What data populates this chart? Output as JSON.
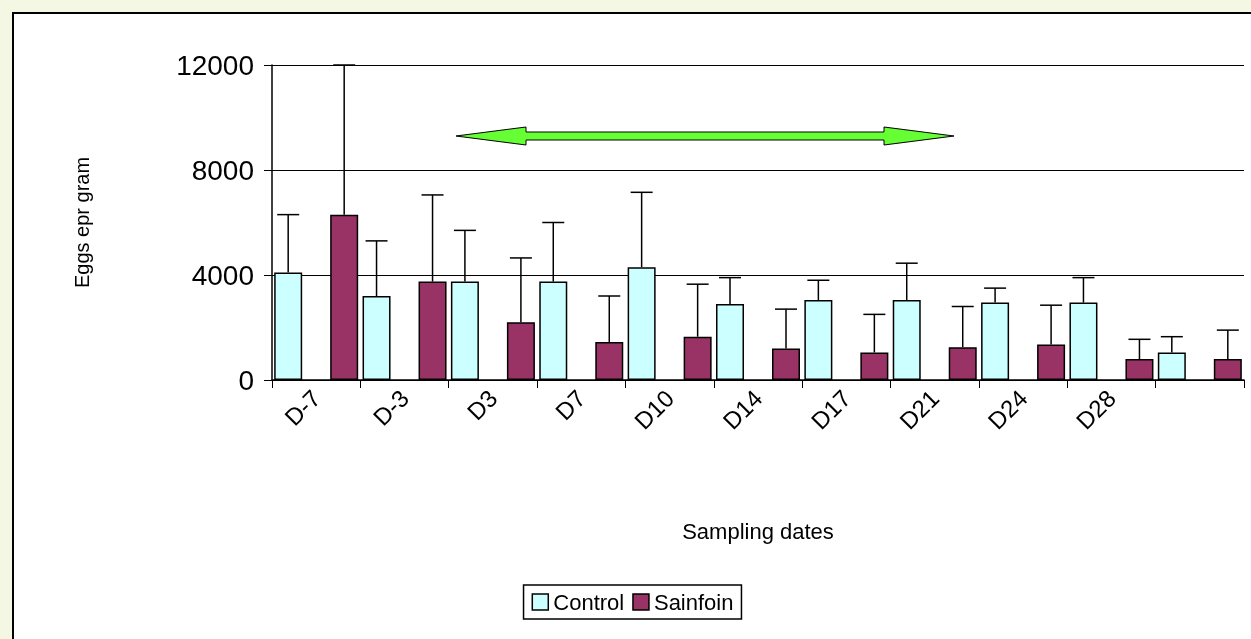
{
  "chart_data": {
    "type": "bar",
    "xlabel": "Sampling dates",
    "ylabel": "Eggs epr gram",
    "categories": [
      "D-7",
      "D-3",
      "D3",
      "D7",
      "D10",
      "D14",
      "D17",
      "D21",
      "D24",
      "D28",
      null
    ],
    "series": [
      {
        "name": "Control",
        "color": "#ccffff",
        "values": [
          4100,
          3200,
          3750,
          3750,
          4300,
          2900,
          3050,
          3050,
          2950,
          2950,
          1050
        ],
        "errors": [
          [
            4100,
            6300
          ],
          [
            3200,
            5300
          ],
          [
            3750,
            5700
          ],
          [
            3750,
            6000
          ],
          [
            4300,
            7150
          ],
          [
            2900,
            3900
          ],
          [
            3050,
            3800
          ],
          [
            3050,
            4450
          ],
          [
            2950,
            3500
          ],
          [
            2950,
            3900
          ],
          [
            1050,
            1650
          ]
        ]
      },
      {
        "name": "Sainfoin",
        "color": "#993366",
        "values": [
          6300,
          3750,
          2200,
          1450,
          1650,
          1200,
          1050,
          1250,
          1350,
          800,
          800
        ],
        "errors": [
          [
            6300,
            12000
          ],
          [
            3750,
            7050
          ],
          [
            2200,
            4650
          ],
          [
            1450,
            3200
          ],
          [
            1650,
            3650
          ],
          [
            1200,
            2700
          ],
          [
            1050,
            2500
          ],
          [
            1250,
            2800
          ],
          [
            1350,
            2850
          ],
          [
            800,
            1550
          ],
          [
            800,
            1900
          ]
        ]
      }
    ],
    "ylim": [
      0,
      12000
    ],
    "yticks": [
      0,
      4000,
      8000,
      12000
    ],
    "grid": "y",
    "legend": "bottom"
  }
}
